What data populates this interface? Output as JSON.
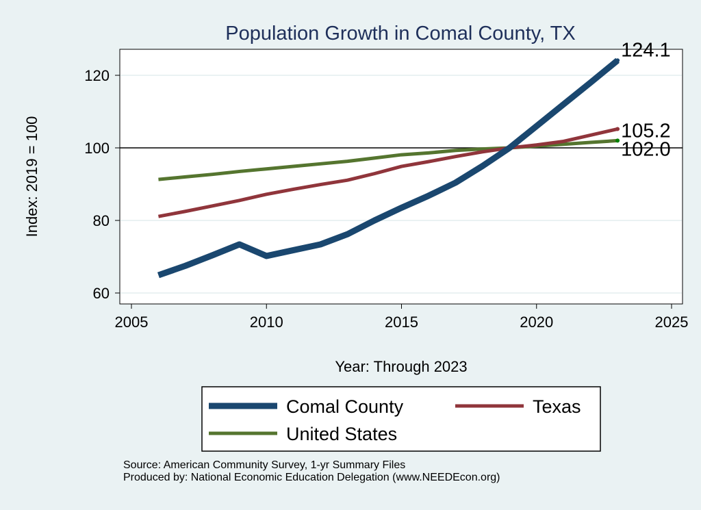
{
  "chart_data": {
    "type": "line",
    "title": "Population Growth in Comal County, TX",
    "xlabel": "Year: Through 2023",
    "ylabel": "Index: 2019 = 100",
    "xlim": [
      2005,
      2025
    ],
    "ylim": [
      60,
      124
    ],
    "xticks": [
      2005,
      2010,
      2015,
      2020,
      2025
    ],
    "yticks": [
      60,
      80,
      100,
      120
    ],
    "reference_line": 100,
    "grid": true,
    "legend_placement": "bottom",
    "x": [
      2006,
      2007,
      2008,
      2009,
      2010,
      2011,
      2012,
      2013,
      2014,
      2015,
      2016,
      2017,
      2018,
      2019,
      2020,
      2021,
      2022,
      2023
    ],
    "series": [
      {
        "name": "Comal  County",
        "color": "#1a476f",
        "width": 9,
        "values": [
          64.9,
          67.5,
          70.4,
          73.4,
          70.2,
          71.8,
          73.4,
          76.2,
          80.0,
          83.5,
          86.8,
          90.4,
          95.0,
          100.0,
          106.0,
          112.0,
          118.0,
          124.1
        ],
        "end_label": "124.1"
      },
      {
        "name": "Texas",
        "color": "#90353b",
        "width": 5,
        "values": [
          81.1,
          82.5,
          84.0,
          85.5,
          87.2,
          88.6,
          89.9,
          91.1,
          92.9,
          94.9,
          96.2,
          97.6,
          98.9,
          100.0,
          100.8,
          101.8,
          103.5,
          105.2
        ],
        "end_label": "105.2"
      },
      {
        "name": "United States",
        "color": "#55752f",
        "width": 5,
        "values": [
          91.3,
          92.0,
          92.7,
          93.5,
          94.2,
          94.9,
          95.6,
          96.3,
          97.2,
          98.1,
          98.6,
          99.3,
          99.7,
          100.0,
          100.5,
          101.0,
          101.5,
          102.0
        ],
        "end_label": "102.0"
      }
    ]
  },
  "source": "Source: American Community Survey, 1-yr Summary Files",
  "produced": "Produced by: National Economic Education Delegation (www.NEEDEcon.org)"
}
